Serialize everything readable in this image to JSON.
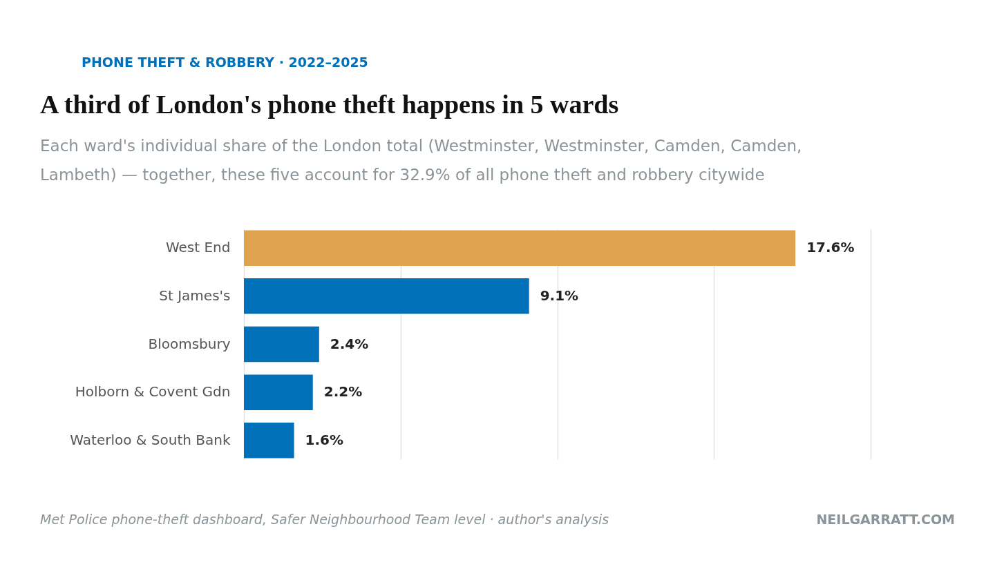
{
  "chart_data": {
    "type": "bar",
    "orientation": "horizontal",
    "title": "A third of London's phone theft happens in 5 wards",
    "subtitle": "Each ward's individual share of the London total (Westminster, Westminster, Camden, Camden,\nLambeth) — together, these five account for 32.9% of all phone theft and robbery citywide",
    "annotations": [
      "PHONE THEFT & ROBBERY · 2022–2025",
      "Met Police phone-theft dashboard, Safer Neighbourhood Team level · author's analysis",
      "NEILGARRATT.COM"
    ],
    "categories": [
      "West End",
      "St James's",
      "Bloomsbury",
      "Holborn & Covent Gdn",
      "Waterloo & South Bank"
    ],
    "values": [
      17.6,
      9.1,
      2.4,
      2.2,
      1.6
    ],
    "value_labels": [
      "17.6%",
      "9.1%",
      "2.4%",
      "2.2%",
      "1.6%"
    ],
    "colors": [
      "#e0a24f",
      "#0070b8",
      "#0070b8",
      "#0070b8",
      "#0070b8"
    ],
    "xlim": [
      0,
      20
    ],
    "xticks": [
      {
        "value": 0,
        "label": null
      },
      {
        "value": 5,
        "label": null
      },
      {
        "value": 10,
        "label": null
      },
      {
        "value": 15,
        "label": null
      },
      {
        "value": 20,
        "label": null
      }
    ],
    "grid": "x",
    "tick_labels": "y"
  }
}
